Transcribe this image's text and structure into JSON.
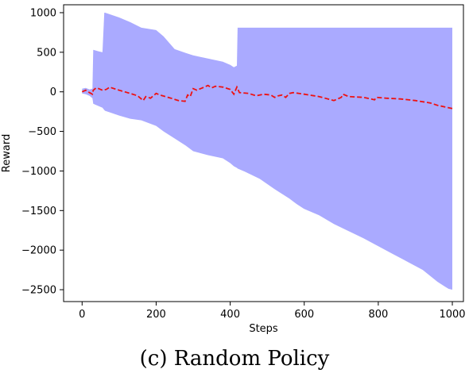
{
  "chart_data": {
    "type": "line",
    "caption": "(c) Random Policy",
    "xlabel": "Steps",
    "ylabel": "Reward",
    "xlim": [
      -50,
      1030
    ],
    "ylim": [
      -2650,
      1100
    ],
    "xticks": [
      0,
      200,
      400,
      600,
      800,
      1000
    ],
    "yticks": [
      -2500,
      -2000,
      -1500,
      -1000,
      -500,
      0,
      500,
      1000
    ],
    "grid": false,
    "series": [
      {
        "name": "",
        "style": "dashed",
        "color": "#ee1111",
        "x": [
          0,
          10,
          20,
          28,
          30,
          38,
          45,
          55,
          65,
          75,
          80,
          100,
          130,
          150,
          165,
          172,
          185,
          200,
          210,
          225,
          240,
          260,
          278,
          285,
          292,
          300,
          310,
          320,
          330,
          340,
          350,
          360,
          380,
          400,
          410,
          418,
          425,
          450,
          470,
          490,
          510,
          520,
          530,
          540,
          550,
          560,
          570,
          600,
          640,
          680,
          700,
          705,
          720,
          760,
          790,
          795,
          820,
          860,
          900,
          940,
          960,
          980,
          1000
        ],
        "y": [
          0,
          20,
          -10,
          -30,
          20,
          50,
          40,
          20,
          30,
          60,
          50,
          20,
          -20,
          -50,
          -110,
          -60,
          -80,
          -20,
          -40,
          -60,
          -80,
          -110,
          -120,
          -40,
          -60,
          40,
          20,
          40,
          60,
          80,
          50,
          70,
          60,
          30,
          -30,
          60,
          -10,
          -20,
          -50,
          -30,
          -40,
          -70,
          -50,
          -40,
          -70,
          -20,
          -10,
          -30,
          -60,
          -110,
          -70,
          -30,
          -60,
          -70,
          -100,
          -70,
          -80,
          -90,
          -110,
          -140,
          -170,
          -190,
          -210
        ]
      }
    ],
    "band": {
      "color": "#aaaaff",
      "x": [
        0,
        10,
        20,
        28,
        30,
        45,
        55,
        60,
        62,
        75,
        100,
        130,
        160,
        200,
        220,
        250,
        280,
        300,
        340,
        380,
        400,
        410,
        418,
        420,
        440,
        480,
        520,
        560,
        580,
        600,
        640,
        680,
        720,
        760,
        800,
        840,
        880,
        920,
        960,
        980,
        990,
        1000
      ],
      "upper": [
        40,
        50,
        30,
        40,
        530,
        510,
        500,
        1000,
        1000,
        980,
        940,
        880,
        810,
        780,
        700,
        540,
        490,
        460,
        420,
        380,
        340,
        310,
        330,
        810,
        810,
        810,
        810,
        810,
        810,
        810,
        810,
        810,
        810,
        810,
        810,
        810,
        810,
        810,
        810,
        810,
        810,
        810
      ],
      "lower": [
        -20,
        -30,
        -50,
        -80,
        -150,
        -180,
        -200,
        -230,
        -240,
        -260,
        -300,
        -340,
        -360,
        -430,
        -500,
        -590,
        -680,
        -750,
        -800,
        -840,
        -900,
        -940,
        -960,
        -970,
        -1010,
        -1100,
        -1230,
        -1350,
        -1420,
        -1480,
        -1560,
        -1670,
        -1760,
        -1850,
        -1950,
        -2050,
        -2150,
        -2250,
        -2400,
        -2460,
        -2490,
        -2500
      ]
    }
  }
}
